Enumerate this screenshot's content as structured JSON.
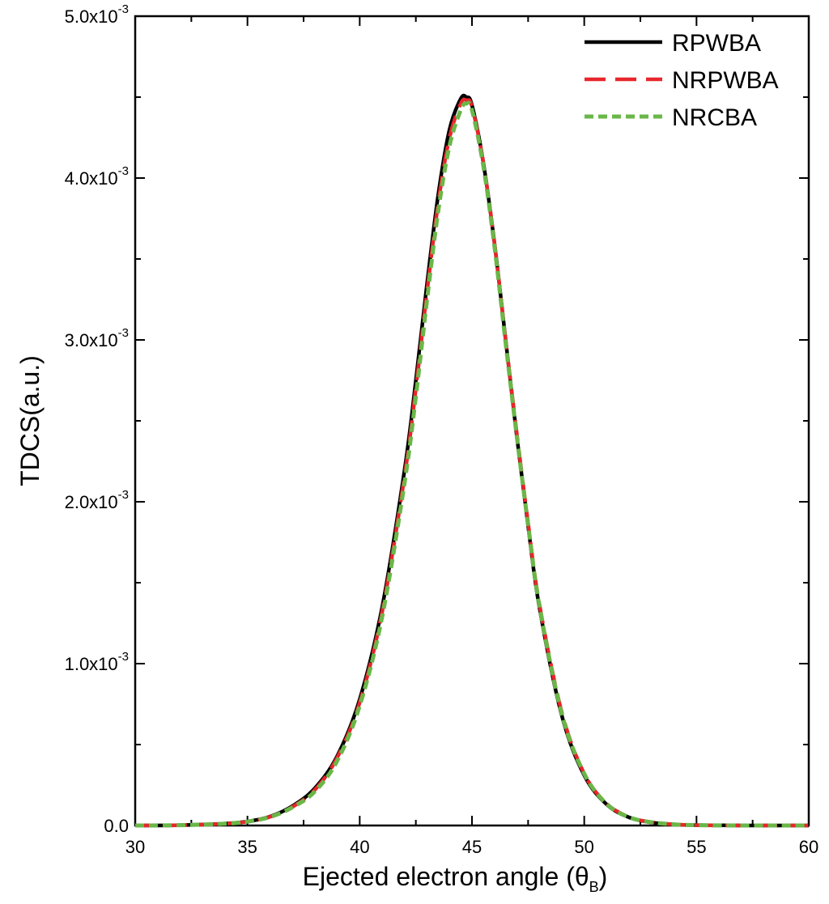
{
  "chart_data": {
    "type": "line",
    "xlabel": "Ejected electron angle (θ",
    "xlabel_sub": "B",
    "xlabel_close": ")",
    "ylabel": "TDCS(a.u.)",
    "xlim": [
      30,
      60
    ],
    "ylim": [
      0,
      0.005
    ],
    "x_ticks": [
      30,
      35,
      40,
      45,
      50,
      55,
      60
    ],
    "y_ticks": [
      {
        "value": 0.0,
        "label": "0.0"
      },
      {
        "value": 0.001,
        "label": "1.0x10",
        "exp": "-3"
      },
      {
        "value": 0.002,
        "label": "2.0x10",
        "exp": "-3"
      },
      {
        "value": 0.003,
        "label": "3.0x10",
        "exp": "-3"
      },
      {
        "value": 0.004,
        "label": "4.0x10",
        "exp": "-3"
      },
      {
        "value": 0.005,
        "label": "5.0x10",
        "exp": "-3"
      }
    ],
    "legend_position": "top-right",
    "grid": false,
    "x": [
      30,
      32,
      34,
      35,
      36,
      37,
      38,
      39,
      40,
      41,
      42,
      42.5,
      43,
      43.5,
      44,
      44.5,
      44.75,
      45,
      45.5,
      46,
      46.5,
      47,
      47.5,
      48,
      49,
      50,
      51,
      52,
      53,
      54,
      55,
      57,
      60
    ],
    "series": [
      {
        "name": "RPWBA",
        "color": "#000000",
        "dash": "solid",
        "values": [
          0,
          2e-06,
          1.2e-05,
          2.5e-05,
          5.5e-05,
          0.00012,
          0.00023,
          0.00043,
          0.00078,
          0.00135,
          0.0022,
          0.00275,
          0.00335,
          0.0039,
          0.0043,
          0.00449,
          0.0045,
          0.00445,
          0.0041,
          0.0036,
          0.003,
          0.0024,
          0.00185,
          0.00135,
          0.00068,
          0.00031,
          0.00013,
          5e-05,
          1.9e-05,
          6e-06,
          2e-06,
          0,
          0
        ]
      },
      {
        "name": "NRPWBA",
        "color": "#e8262b",
        "dash": "long-dash",
        "values": [
          0,
          2e-06,
          1.1e-05,
          2.4e-05,
          5.3e-05,
          0.000115,
          0.00022,
          0.00042,
          0.00076,
          0.00132,
          0.00216,
          0.0027,
          0.0033,
          0.00385,
          0.00425,
          0.00446,
          0.00448,
          0.00444,
          0.0041,
          0.0036,
          0.003,
          0.00242,
          0.00187,
          0.00137,
          0.0007,
          0.00032,
          0.000135,
          5.2e-05,
          2e-05,
          7e-06,
          2e-06,
          0,
          0
        ]
      },
      {
        "name": "NRCBA",
        "color": "#6ab748",
        "dash": "short-dash",
        "values": [
          0,
          2e-06,
          1.1e-05,
          2.4e-05,
          5.2e-05,
          0.000112,
          0.00021,
          0.0004,
          0.00074,
          0.00129,
          0.00212,
          0.00265,
          0.00325,
          0.0038,
          0.0042,
          0.00442,
          0.00446,
          0.00442,
          0.00408,
          0.00358,
          0.00298,
          0.0024,
          0.00186,
          0.00136,
          0.00069,
          0.00032,
          0.000133,
          5.1e-05,
          2e-05,
          7e-06,
          2e-06,
          0,
          0
        ]
      }
    ]
  }
}
